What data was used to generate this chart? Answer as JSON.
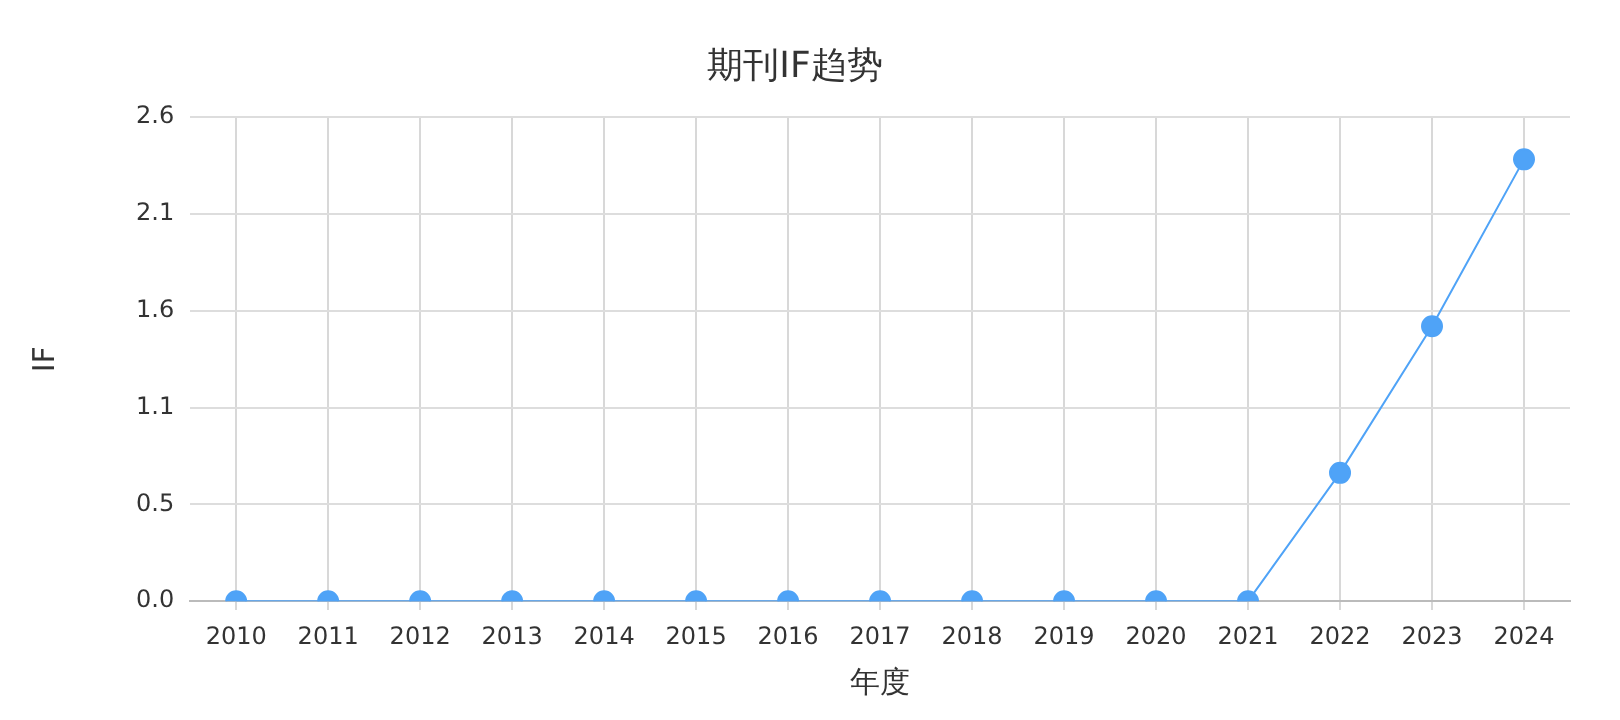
{
  "chart_data": {
    "type": "line",
    "title": "期刊IF趋势",
    "xlabel": "年度",
    "ylabel": "IF",
    "categories": [
      "2010",
      "2011",
      "2012",
      "2013",
      "2014",
      "2015",
      "2016",
      "2017",
      "2018",
      "2019",
      "2020",
      "2021",
      "2022",
      "2023",
      "2024"
    ],
    "series": [
      {
        "color": "#4fa3f7",
        "values": [
          0,
          0,
          0,
          0,
          0,
          0,
          0,
          0,
          0,
          0,
          0,
          0,
          0.7,
          1.5,
          2.41
        ]
      }
    ],
    "ylim": [
      0,
      2.64
    ],
    "yticks": [
      {
        "value": 0,
        "label": "0.0"
      },
      {
        "value": 0.528,
        "label": "0.5"
      },
      {
        "value": 1.056,
        "label": "1.1"
      },
      {
        "value": 1.584,
        "label": "1.6"
      },
      {
        "value": 2.112,
        "label": "2.1"
      },
      {
        "value": 2.64,
        "label": "2.6"
      }
    ],
    "grid": true,
    "legend": false,
    "marker": "circle",
    "line_style": "solid"
  }
}
